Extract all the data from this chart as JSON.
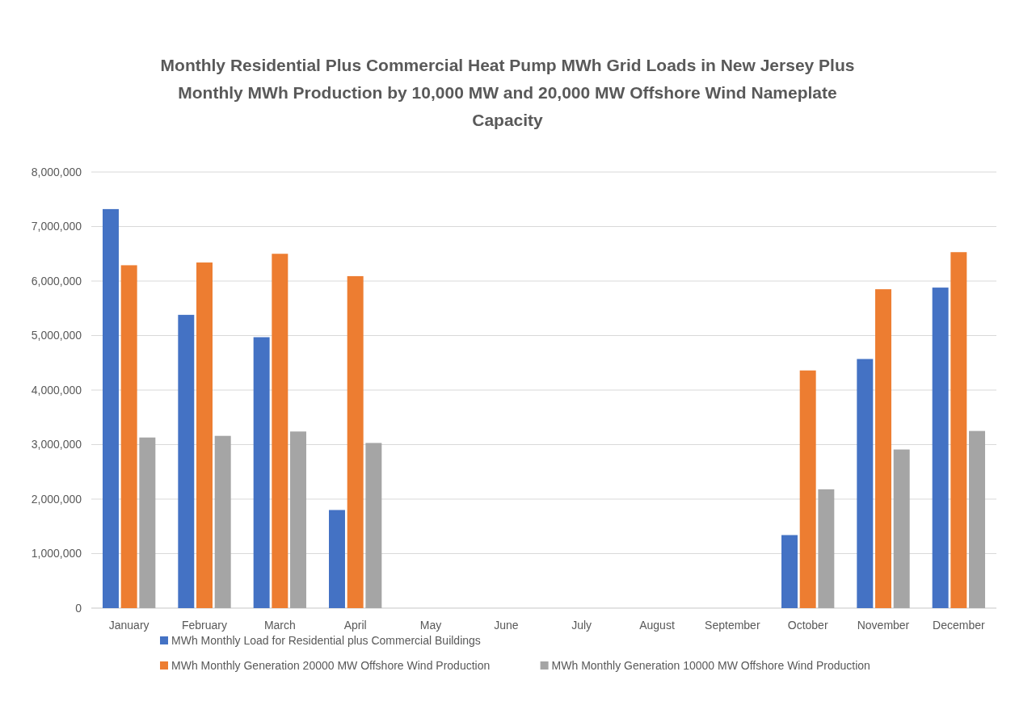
{
  "chart_data": {
    "type": "bar",
    "title": "Monthly Residential Plus Commercial Heat Pump MWh Grid Loads in New Jersey Plus Monthly MWh Production by 10,000 MW and 20,000 MW Offshore Wind Nameplate Capacity",
    "categories": [
      "January",
      "February",
      "March",
      "April",
      "May",
      "June",
      "July",
      "August",
      "September",
      "October",
      "November",
      "December"
    ],
    "series": [
      {
        "name": "MWh Monthly Load for Residential plus Commercial Buildings",
        "color": "#4472c4",
        "values": [
          7320000,
          5380000,
          4970000,
          1800000,
          0,
          0,
          0,
          0,
          0,
          1340000,
          4570000,
          5880000
        ]
      },
      {
        "name": "MWh Monthly Generation 20000 MW Offshore Wind Production",
        "color": "#ed7d31",
        "values": [
          6290000,
          6340000,
          6500000,
          6090000,
          0,
          0,
          0,
          0,
          0,
          4360000,
          5850000,
          6530000
        ]
      },
      {
        "name": "MWh Monthly Generation 10000 MW Offshore Wind Production",
        "color": "#a5a5a5",
        "values": [
          3130000,
          3160000,
          3240000,
          3030000,
          0,
          0,
          0,
          0,
          0,
          2180000,
          2910000,
          3250000
        ]
      }
    ],
    "ylim": [
      0,
      8000000
    ],
    "yticks": [
      {
        "value": 0,
        "label": "0"
      },
      {
        "value": 1000000,
        "label": "1,000,000"
      },
      {
        "value": 2000000,
        "label": "2,000,000"
      },
      {
        "value": 3000000,
        "label": "3,000,000"
      },
      {
        "value": 4000000,
        "label": "4,000,000"
      },
      {
        "value": 5000000,
        "label": "5,000,000"
      },
      {
        "value": 6000000,
        "label": "6,000,000"
      },
      {
        "value": 7000000,
        "label": "7,000,000"
      },
      {
        "value": 8000000,
        "label": "8,000,000"
      }
    ],
    "grid": "y",
    "legend": "bottom"
  }
}
